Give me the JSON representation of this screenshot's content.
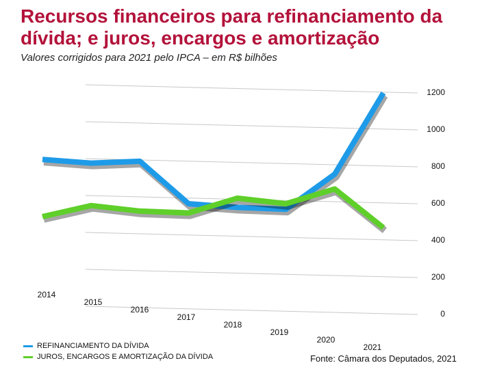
{
  "chart_data": {
    "type": "line",
    "title": "Recursos financeiros para refinanciamento da dívida; e juros, encargos e amortização",
    "subtitle": "Valores corrigidos para 2021 pelo IPCA – em R$ bilhões",
    "categories": [
      "2014",
      "2015",
      "2016",
      "2017",
      "2018",
      "2019",
      "2020",
      "2021"
    ],
    "series": [
      {
        "name": "REFINANCIAMENTO DA DÍVIDA",
        "color": "#1e9be8",
        "values": [
          840,
          820,
          830,
          600,
          580,
          570,
          760,
          1200
        ]
      },
      {
        "name": "JUROS, ENCARGOS E AMORTIZAÇÃO DA DÍVIDA",
        "color": "#5fcf2a",
        "values": [
          530,
          590,
          560,
          550,
          630,
          600,
          680,
          470
        ]
      }
    ],
    "ylim": [
      0,
      1200
    ],
    "yticks": [
      0,
      200,
      400,
      600,
      800,
      1000,
      1200
    ],
    "grid": true,
    "source": "Fonte: Câmara dos Deputados, 2021"
  }
}
